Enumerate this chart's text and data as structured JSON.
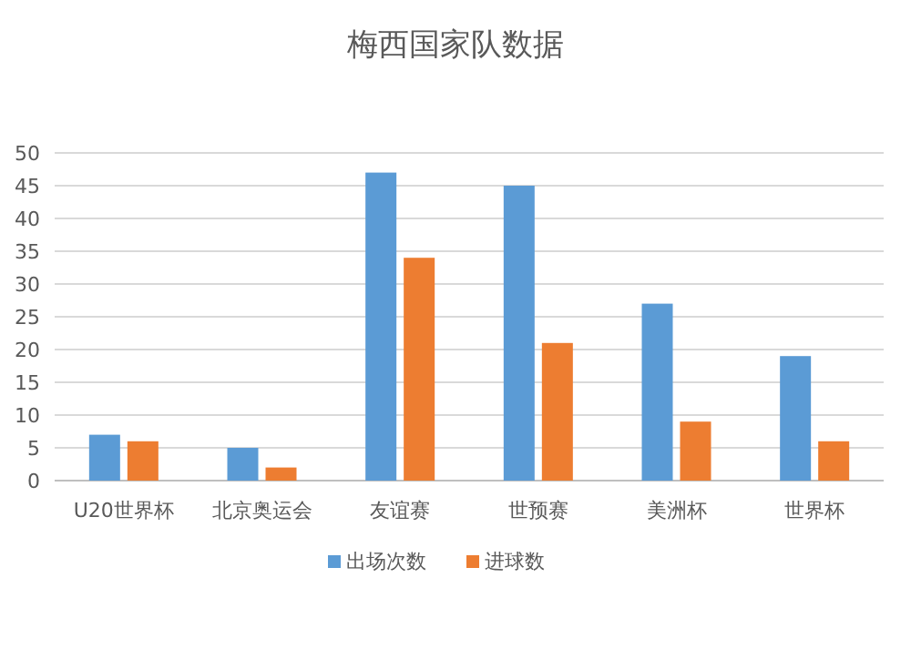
{
  "chart_data": {
    "type": "bar",
    "title": "梅西国家队数据",
    "categories": [
      "U20世界杯",
      "北京奥运会",
      "友谊赛",
      "世预赛",
      "美洲杯",
      "世界杯"
    ],
    "series": [
      {
        "name": "出场次数",
        "color": "#5b9bd5",
        "values": [
          7,
          5,
          47,
          45,
          27,
          19
        ]
      },
      {
        "name": "进球数",
        "color": "#ed7d31",
        "values": [
          6,
          2,
          34,
          21,
          9,
          6
        ]
      }
    ],
    "ylim": [
      0,
      50
    ],
    "yticks": [
      0,
      5,
      10,
      15,
      20,
      25,
      30,
      35,
      40,
      45,
      50
    ],
    "grid": "y",
    "legend": "bottom"
  }
}
